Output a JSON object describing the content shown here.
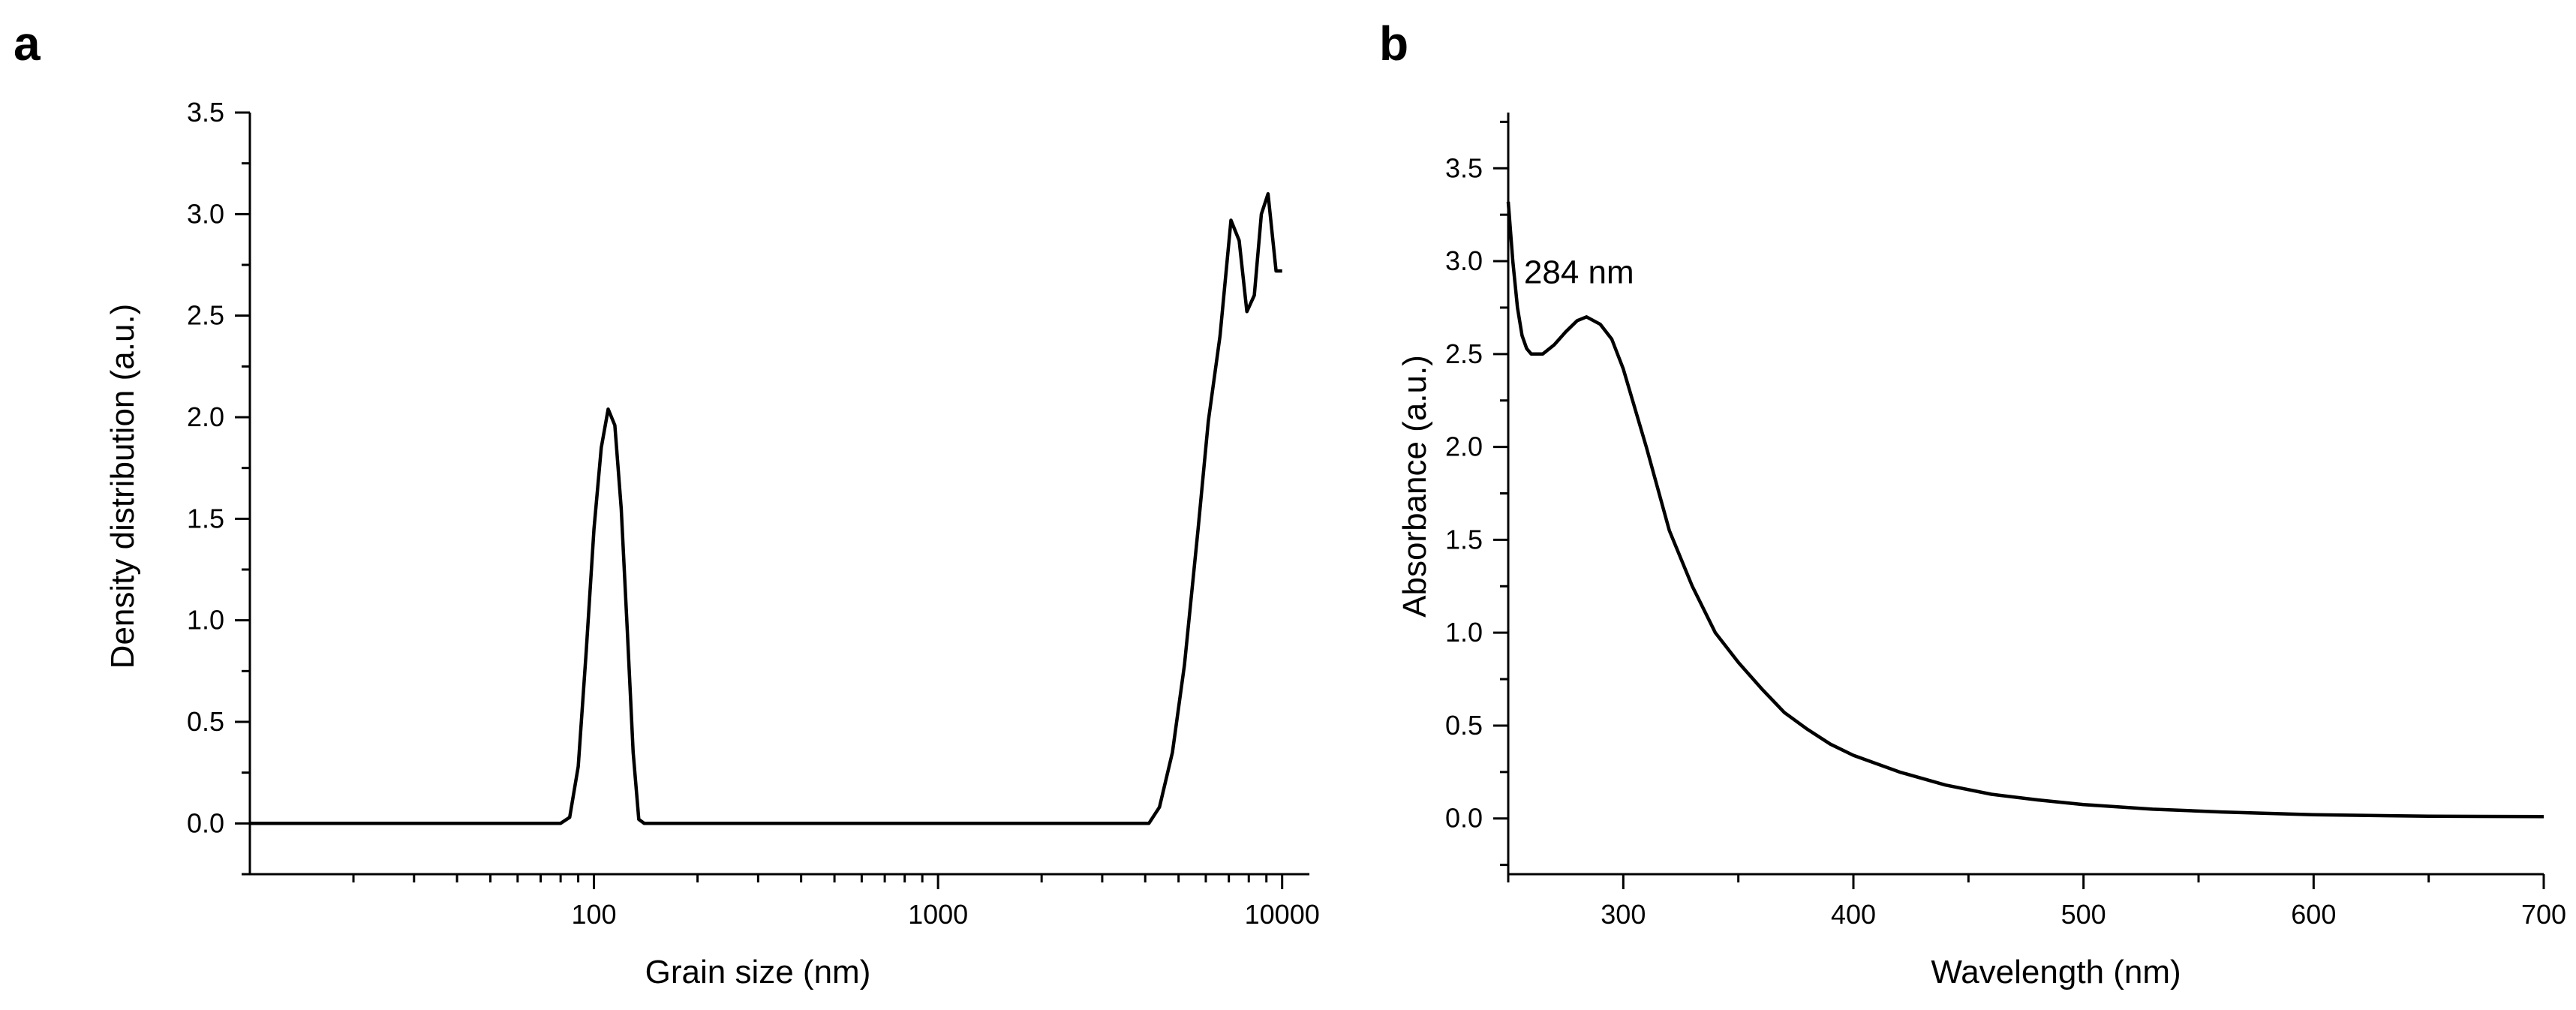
{
  "chart_data": [
    {
      "panel": "a",
      "type": "line",
      "title": "",
      "xlabel": "Grain size (nm)",
      "ylabel": "Density distribution (a.u.)",
      "xscale": "log",
      "xlim": [
        10,
        12000
      ],
      "ylim": [
        -0.25,
        3.5
      ],
      "xticks": [
        100,
        1000,
        10000
      ],
      "xtick_labels": [
        "100",
        "1000",
        "10000"
      ],
      "yticks": [
        0.0,
        0.5,
        1.0,
        1.5,
        2.0,
        2.5,
        3.0,
        3.5
      ],
      "ytick_labels": [
        "0.0",
        "0.5",
        "1.0",
        "1.5",
        "2.0",
        "2.5",
        "3.0",
        "3.5"
      ],
      "grid": false,
      "legend": "none",
      "color": "#000000",
      "series": [
        {
          "name": "Density distribution",
          "x": [
            10,
            80,
            85,
            90,
            95,
            100,
            105,
            110,
            115,
            120,
            125,
            130,
            135,
            140,
            145,
            150,
            155,
            160,
            1000,
            4100,
            4400,
            4800,
            5200,
            5700,
            6100,
            6600,
            7100,
            7500,
            7900,
            8300,
            8700,
            9100,
            9600,
            10000
          ],
          "y": [
            0.0,
            0.0,
            0.03,
            0.28,
            0.85,
            1.45,
            1.85,
            2.04,
            1.96,
            1.55,
            0.95,
            0.35,
            0.02,
            0.0,
            0.0,
            0.0,
            0.0,
            0.0,
            0.0,
            0.0,
            0.08,
            0.35,
            0.78,
            1.45,
            1.98,
            2.4,
            2.97,
            2.87,
            2.52,
            2.6,
            3.0,
            3.1,
            2.72,
            2.72
          ]
        }
      ]
    },
    {
      "panel": "b",
      "type": "line",
      "title": "",
      "xlabel": "Wavelength (nm)",
      "ylabel": "Absorbance (a.u.)",
      "xscale": "linear",
      "xlim": [
        250,
        700
      ],
      "ylim": [
        -0.3,
        3.8
      ],
      "xticks": [
        300,
        400,
        500,
        600,
        700
      ],
      "xtick_labels": [
        "300",
        "400",
        "500",
        "600",
        "700"
      ],
      "yticks": [
        0.0,
        0.5,
        1.0,
        1.5,
        2.0,
        2.5,
        3.0,
        3.5
      ],
      "ytick_labels": [
        "0.0",
        "0.5",
        "1.0",
        "1.5",
        "2.0",
        "2.5",
        "3.0",
        "3.5"
      ],
      "grid": false,
      "legend": "none",
      "color": "#000000",
      "annotations": [
        {
          "text": "284 nm",
          "x": 284,
          "y": 2.72
        }
      ],
      "series": [
        {
          "name": "Absorbance",
          "x": [
            250,
            252,
            254,
            256,
            258,
            260,
            265,
            270,
            275,
            280,
            284,
            290,
            295,
            300,
            310,
            320,
            330,
            340,
            350,
            360,
            370,
            380,
            390,
            400,
            420,
            440,
            460,
            480,
            500,
            530,
            560,
            600,
            650,
            700
          ],
          "y": [
            3.32,
            3.0,
            2.75,
            2.6,
            2.53,
            2.5,
            2.5,
            2.55,
            2.62,
            2.68,
            2.7,
            2.66,
            2.58,
            2.42,
            2.0,
            1.55,
            1.25,
            1.0,
            0.84,
            0.7,
            0.57,
            0.48,
            0.4,
            0.34,
            0.25,
            0.18,
            0.13,
            0.1,
            0.075,
            0.05,
            0.035,
            0.02,
            0.012,
            0.01
          ]
        }
      ]
    }
  ]
}
